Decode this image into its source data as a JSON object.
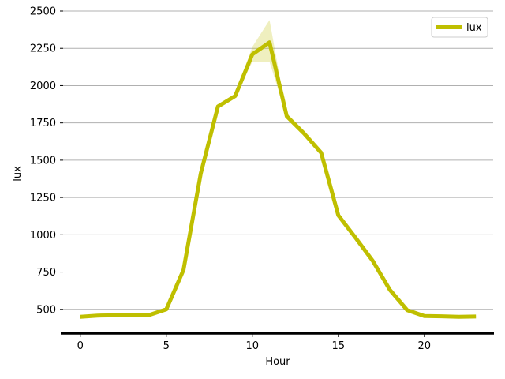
{
  "chart_data": {
    "type": "line",
    "title": "",
    "xlabel": "Hour",
    "ylabel": "lux",
    "x": [
      0,
      1,
      2,
      3,
      4,
      5,
      6,
      7,
      8,
      9,
      10,
      11,
      12,
      13,
      14,
      15,
      16,
      17,
      18,
      19,
      20,
      21,
      22,
      23
    ],
    "series": [
      {
        "name": "lux",
        "color": "#bfbf00",
        "values": [
          450,
          458,
          460,
          462,
          462,
          500,
          765,
          1410,
          1860,
          1930,
          2210,
          2290,
          1795,
          1680,
          1550,
          1130,
          980,
          825,
          630,
          495,
          455,
          453,
          450,
          452
        ],
        "band_lower": [
          445,
          453,
          455,
          457,
          457,
          494,
          755,
          1400,
          1850,
          1920,
          2160,
          2160,
          1790,
          1665,
          1535,
          1120,
          970,
          815,
          620,
          488,
          450,
          448,
          445,
          447
        ],
        "band_upper": [
          455,
          463,
          465,
          467,
          467,
          506,
          775,
          1420,
          1870,
          1940,
          2260,
          2440,
          1800,
          1695,
          1565,
          1140,
          990,
          835,
          640,
          502,
          460,
          458,
          455,
          457
        ]
      }
    ],
    "xlim": [
      -1,
      24
    ],
    "ylim": [
      340,
      2500
    ],
    "xticks": [
      0,
      5,
      10,
      15,
      20
    ],
    "xtick_labels": [
      "0",
      "5",
      "10",
      "15",
      "20"
    ],
    "yticks": [
      500,
      750,
      1000,
      1250,
      1500,
      1750,
      2000,
      2250,
      2500
    ],
    "ytick_labels": [
      "500",
      "750",
      "1000",
      "1250",
      "1500",
      "1750",
      "2000",
      "2250",
      "2500"
    ],
    "grid": "horizontal",
    "legend_position": "top-right"
  }
}
